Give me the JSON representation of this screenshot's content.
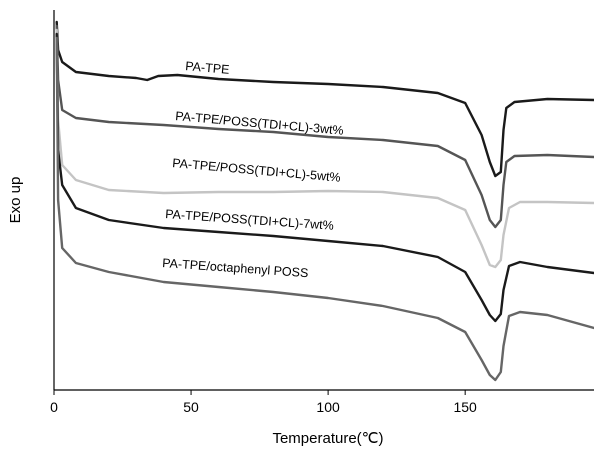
{
  "chart_data": {
    "type": "line",
    "xlabel": "Temperature(℃)",
    "ylabel": "Exo up",
    "xlim": [
      0,
      197
    ],
    "x_ticks": [
      "0",
      "50",
      "100",
      "150"
    ],
    "x_tick_values": [
      0,
      50,
      100,
      150
    ],
    "y_ticks": [],
    "grid": false,
    "y_scale": "arbitrary (stacked DSC curves, exothermic up)",
    "series": [
      {
        "name": "PA-TPE",
        "color": "#1a1a1a",
        "points": [
          [
            1,
            12
          ],
          [
            1.5,
            40
          ],
          [
            3,
            52
          ],
          [
            8,
            62
          ],
          [
            20,
            66
          ],
          [
            30,
            68
          ],
          [
            34,
            70
          ],
          [
            38,
            66
          ],
          [
            45,
            65
          ],
          [
            60,
            69
          ],
          [
            80,
            72
          ],
          [
            100,
            74
          ],
          [
            120,
            77
          ],
          [
            140,
            83
          ],
          [
            150,
            93
          ],
          [
            156,
            125
          ],
          [
            159,
            152
          ],
          [
            161,
            166
          ],
          [
            163,
            162
          ],
          [
            164,
            120
          ],
          [
            165,
            98
          ],
          [
            168,
            92
          ],
          [
            180,
            89
          ],
          [
            197,
            90
          ]
        ]
      },
      {
        "name": "PA-TPE/POSS(TDI+CL)-3wt%",
        "color": "#555555",
        "points": [
          [
            1,
            16
          ],
          [
            1.5,
            70
          ],
          [
            3,
            100
          ],
          [
            8,
            108
          ],
          [
            20,
            112
          ],
          [
            40,
            115
          ],
          [
            60,
            119
          ],
          [
            80,
            122
          ],
          [
            100,
            127
          ],
          [
            120,
            130
          ],
          [
            140,
            136
          ],
          [
            150,
            150
          ],
          [
            156,
            185
          ],
          [
            159,
            210
          ],
          [
            161,
            217
          ],
          [
            163,
            210
          ],
          [
            164,
            175
          ],
          [
            165,
            152
          ],
          [
            168,
            146
          ],
          [
            180,
            145
          ],
          [
            197,
            147
          ]
        ]
      },
      {
        "name": "PA-TPE/POSS(TDI+CL)-5wt%",
        "color": "#c4c4c4",
        "points": [
          [
            1,
            20
          ],
          [
            1.5,
            110
          ],
          [
            3,
            155
          ],
          [
            8,
            170
          ],
          [
            20,
            180
          ],
          [
            40,
            183
          ],
          [
            60,
            182
          ],
          [
            80,
            182
          ],
          [
            100,
            181
          ],
          [
            120,
            182
          ],
          [
            140,
            188
          ],
          [
            150,
            200
          ],
          [
            156,
            235
          ],
          [
            159,
            255
          ],
          [
            161,
            257
          ],
          [
            163,
            250
          ],
          [
            164,
            225
          ],
          [
            166,
            198
          ],
          [
            170,
            192
          ],
          [
            180,
            192
          ],
          [
            197,
            193
          ]
        ]
      },
      {
        "name": "PA-TPE/POSS(TDI+CL)-7wt%",
        "color": "#1a1a1a",
        "points": [
          [
            1,
            24
          ],
          [
            1.5,
            140
          ],
          [
            3,
            175
          ],
          [
            8,
            198
          ],
          [
            20,
            210
          ],
          [
            40,
            218
          ],
          [
            60,
            222
          ],
          [
            80,
            226
          ],
          [
            100,
            231
          ],
          [
            120,
            236
          ],
          [
            140,
            247
          ],
          [
            150,
            262
          ],
          [
            156,
            290
          ],
          [
            159,
            305
          ],
          [
            161,
            311
          ],
          [
            163,
            304
          ],
          [
            164,
            280
          ],
          [
            166,
            256
          ],
          [
            170,
            252
          ],
          [
            180,
            257
          ],
          [
            197,
            263
          ]
        ]
      },
      {
        "name": "PA-TPE/octaphenyl POSS",
        "color": "#666666",
        "points": [
          [
            1,
            28
          ],
          [
            1.5,
            190
          ],
          [
            3,
            238
          ],
          [
            8,
            253
          ],
          [
            20,
            262
          ],
          [
            40,
            272
          ],
          [
            60,
            277
          ],
          [
            80,
            282
          ],
          [
            100,
            288
          ],
          [
            120,
            296
          ],
          [
            140,
            308
          ],
          [
            150,
            322
          ],
          [
            156,
            350
          ],
          [
            159,
            365
          ],
          [
            161,
            370
          ],
          [
            163,
            362
          ],
          [
            164,
            336
          ],
          [
            166,
            306
          ],
          [
            170,
            302
          ],
          [
            180,
            305
          ],
          [
            197,
            318
          ]
        ]
      }
    ]
  }
}
